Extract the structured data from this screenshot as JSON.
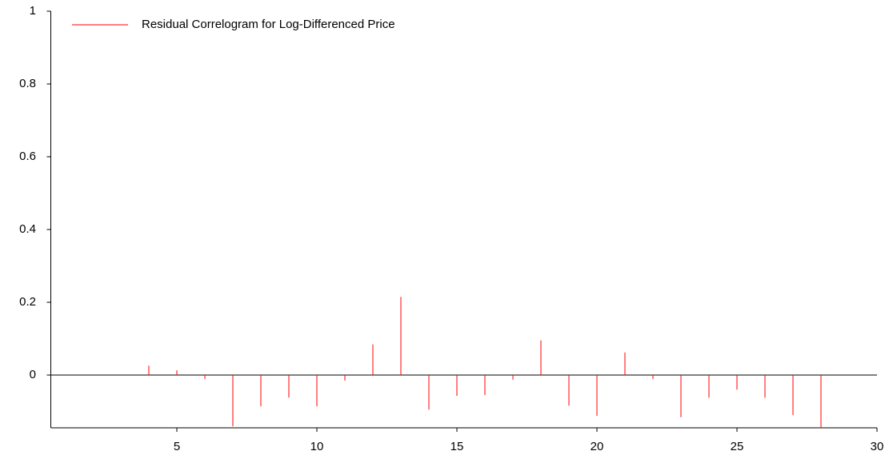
{
  "chart_data": {
    "type": "stem",
    "x": [
      1,
      2,
      3,
      4,
      5,
      6,
      7,
      8,
      9,
      10,
      11,
      12,
      13,
      14,
      15,
      16,
      17,
      18,
      19,
      20,
      21,
      22,
      23,
      24,
      25,
      26,
      27,
      28
    ],
    "series": [
      {
        "name": "Residual Correlogram for Log-Differenced Price",
        "color": "#ff0000",
        "values": [
          0,
          0,
          0,
          0.026,
          0.013,
          -0.011,
          -0.141,
          -0.086,
          -0.062,
          -0.086,
          -0.015,
          0.084,
          0.215,
          -0.095,
          -0.057,
          -0.055,
          -0.013,
          0.095,
          -0.084,
          -0.112,
          0.062,
          -0.011,
          -0.116,
          -0.062,
          -0.04,
          -0.062,
          -0.11,
          -0.145
        ]
      }
    ],
    "xlim": [
      0.5,
      30
    ],
    "xticks": [
      5,
      10,
      15,
      20,
      25,
      30
    ],
    "ylim": [
      -0.145,
      1
    ],
    "yticks": [
      0,
      0.2,
      0.4,
      0.6,
      0.8,
      1
    ],
    "legend": "top-left"
  }
}
